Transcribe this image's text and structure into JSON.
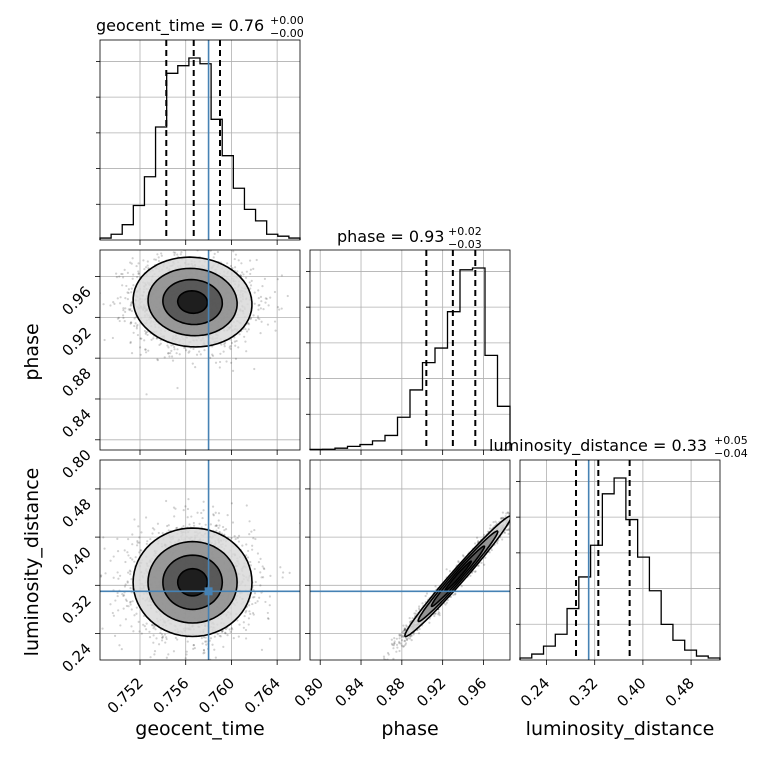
{
  "chart_data": {
    "type": "corner",
    "parameters": [
      {
        "name": "geocent_time",
        "label": "geocent_time",
        "title": "geocent_time = 0.76",
        "title_sup": "+0.00",
        "title_sub": "−0.00",
        "median": 0.7567,
        "q16": 0.7543,
        "q84": 0.759,
        "truth": 0.758,
        "range": [
          0.7485,
          0.766
        ],
        "ticks": [
          0.752,
          0.756,
          0.76,
          0.764
        ],
        "tick_labels": [
          "0.752",
          "0.756",
          "0.760",
          "0.764"
        ],
        "hist_counts": [
          0.01,
          0.03,
          0.08,
          0.18,
          0.33,
          0.59,
          0.87,
          0.91,
          0.95,
          0.92,
          0.63,
          0.44,
          0.27,
          0.16,
          0.1,
          0.03,
          0.02,
          0.01
        ]
      },
      {
        "name": "phase",
        "label": "phase",
        "title": "phase = 0.93",
        "title_sup": "+0.02",
        "title_sub": "−0.03",
        "median": 0.93,
        "q16": 0.904,
        "q84": 0.952,
        "truth": null,
        "range": [
          0.79,
          0.986
        ],
        "ticks": [
          0.8,
          0.84,
          0.88,
          0.92,
          0.96
        ],
        "tick_labels": [
          "0.80",
          "0.84",
          "0.88",
          "0.92",
          "0.96"
        ],
        "hist_counts": [
          0.003,
          0.004,
          0.01,
          0.02,
          0.03,
          0.05,
          0.08,
          0.18,
          0.33,
          0.48,
          0.56,
          0.76,
          0.99,
          1.0,
          0.52,
          0.24
        ]
      },
      {
        "name": "luminosity_distance",
        "label": "luminosity_distance",
        "title": "luminosity_distance = 0.33",
        "title_sup": "+0.05",
        "title_sub": "−0.04",
        "median": 0.326,
        "q16": 0.289,
        "q84": 0.378,
        "truth": 0.31,
        "range": [
          0.196,
          0.528
        ],
        "ticks": [
          0.24,
          0.32,
          0.4,
          0.48
        ],
        "tick_labels": [
          "0.24",
          "0.32",
          "0.40",
          "0.48"
        ],
        "hist_counts": [
          0.01,
          0.03,
          0.07,
          0.13,
          0.26,
          0.42,
          0.58,
          0.84,
          0.92,
          0.71,
          0.52,
          0.35,
          0.18,
          0.1,
          0.05,
          0.02,
          0.01
        ]
      }
    ],
    "contours_2d": [
      {
        "x": "geocent_time",
        "y": "phase",
        "center": [
          0.7566,
          0.935
        ],
        "sigma": [
          0.0026,
          0.022
        ],
        "rho": -0.05
      },
      {
        "x": "geocent_time",
        "y": "luminosity_distance",
        "center": [
          0.7566,
          0.325
        ],
        "sigma": [
          0.0026,
          0.045
        ],
        "rho": 0.0
      },
      {
        "x": "phase",
        "y": "luminosity_distance",
        "center": [
          0.935,
          0.335
        ],
        "sigma": [
          0.026,
          0.05
        ],
        "rho": 0.985
      }
    ],
    "grid": true,
    "truth_color": "#4682b4"
  }
}
